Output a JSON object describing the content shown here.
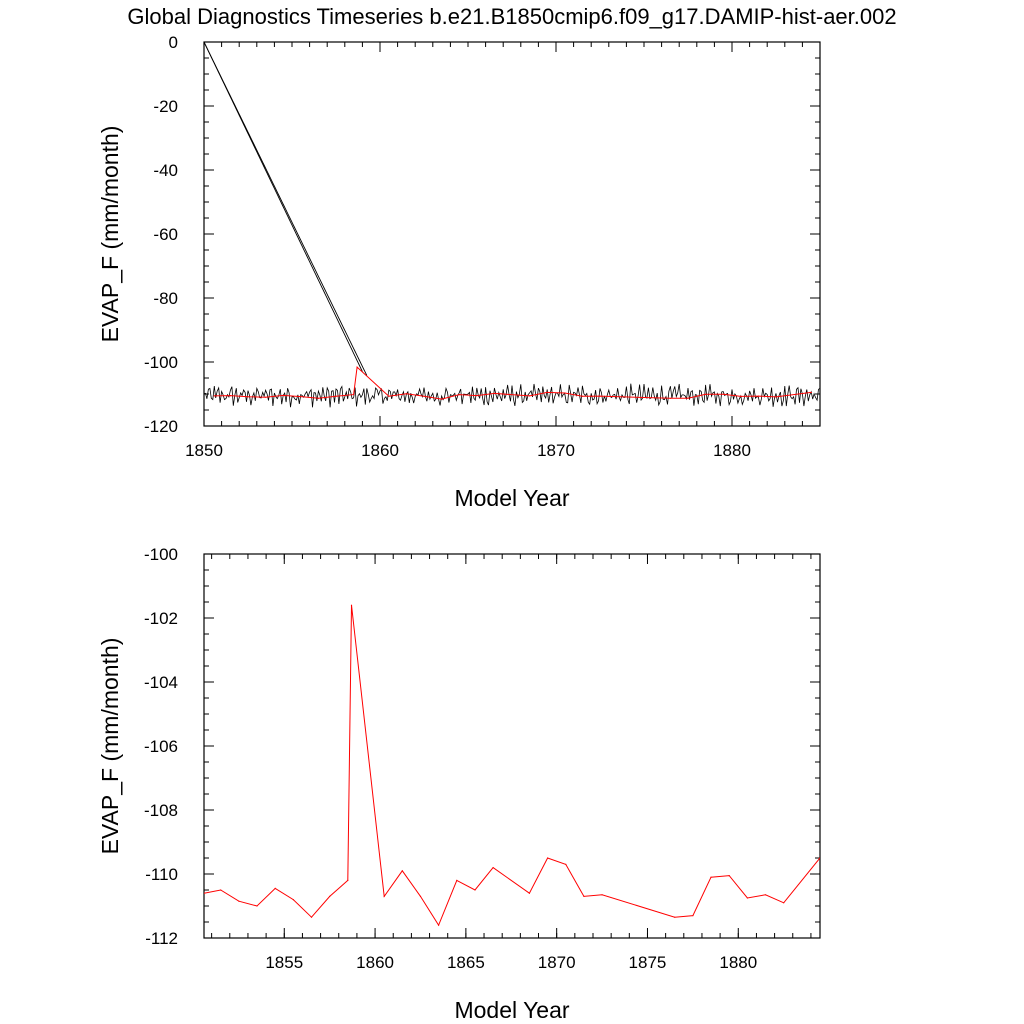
{
  "title": "Global Diagnostics Timeseries b.e21.B1850cmip6.f09_g17.DAMIP-hist-aer.002",
  "colors": {
    "monthly": "#000000",
    "annual": "#ff0000",
    "axes": "#000000"
  },
  "chart_data": [
    {
      "type": "line",
      "xlabel": "Model Year",
      "ylabel": "EVAP_F (mm/month)",
      "xlim": [
        1850,
        1885
      ],
      "ylim": [
        -120,
        0
      ],
      "x_ticks": [
        1850,
        1860,
        1870,
        1880
      ],
      "y_ticks": [
        0,
        -20,
        -40,
        -60,
        -80,
        -100,
        -120
      ],
      "grid": false,
      "series": [
        {
          "color": "#000000",
          "style": "monthly",
          "description_points": {
            "start": [
              1850.0,
              0
            ],
            "drop_end": [
              1859.0,
              -103
            ],
            "baseline_mean": -110.5,
            "amplitude": 2.5
          },
          "x": [
            1850.0,
            1859.0,
            1859.1,
            1885.0
          ],
          "values": [
            0,
            -103,
            -110.5,
            -110.5
          ]
        },
        {
          "color": "#ff0000",
          "x": [
            1850.58,
            1851.5,
            1852.5,
            1853.5,
            1854.5,
            1855.5,
            1856.5,
            1857.5,
            1858.5,
            1858.7,
            1860.5,
            1861.5,
            1862.5,
            1863.5,
            1864.5,
            1865.5,
            1866.5,
            1868.5,
            1869.5,
            1870.5,
            1871.5,
            1872.5,
            1876.5,
            1877.5,
            1878.5,
            1879.5,
            1880.5,
            1881.5,
            1882.5,
            1884.5
          ],
          "values": [
            -110.6,
            -110.5,
            -110.85,
            -111.0,
            -110.45,
            -110.8,
            -111.35,
            -110.7,
            -110.2,
            -101.6,
            -110.7,
            -109.9,
            -110.7,
            -111.6,
            -110.2,
            -110.5,
            -109.8,
            -110.6,
            -109.5,
            -109.7,
            -110.7,
            -110.65,
            -111.35,
            -111.3,
            -110.1,
            -110.05,
            -110.75,
            -110.65,
            -110.9,
            -109.5
          ]
        }
      ]
    },
    {
      "type": "line",
      "xlabel": "Model Year",
      "ylabel": "EVAP_F (mm/month)",
      "xlim": [
        1850.58,
        1884.5
      ],
      "ylim": [
        -112,
        -100
      ],
      "x_ticks": [
        1855,
        1860,
        1865,
        1870,
        1875,
        1880
      ],
      "y_ticks": [
        -100,
        -102,
        -104,
        -106,
        -108,
        -110,
        -112
      ],
      "grid": false,
      "series": [
        {
          "color": "#ff0000",
          "x": [
            1850.58,
            1851.5,
            1852.5,
            1853.5,
            1854.5,
            1855.5,
            1856.5,
            1857.5,
            1858.5,
            1858.7,
            1860.5,
            1861.5,
            1862.5,
            1863.5,
            1864.5,
            1865.5,
            1866.5,
            1868.5,
            1869.5,
            1870.5,
            1871.5,
            1872.5,
            1876.5,
            1877.5,
            1878.5,
            1879.5,
            1880.5,
            1881.5,
            1882.5,
            1884.5
          ],
          "values": [
            -110.6,
            -110.5,
            -110.85,
            -111.0,
            -110.45,
            -110.8,
            -111.35,
            -110.7,
            -110.2,
            -101.6,
            -110.7,
            -109.9,
            -110.7,
            -111.6,
            -110.2,
            -110.5,
            -109.8,
            -110.6,
            -109.5,
            -109.7,
            -110.7,
            -110.65,
            -111.35,
            -111.3,
            -110.1,
            -110.05,
            -110.75,
            -110.65,
            -110.9,
            -109.5
          ]
        }
      ]
    }
  ]
}
